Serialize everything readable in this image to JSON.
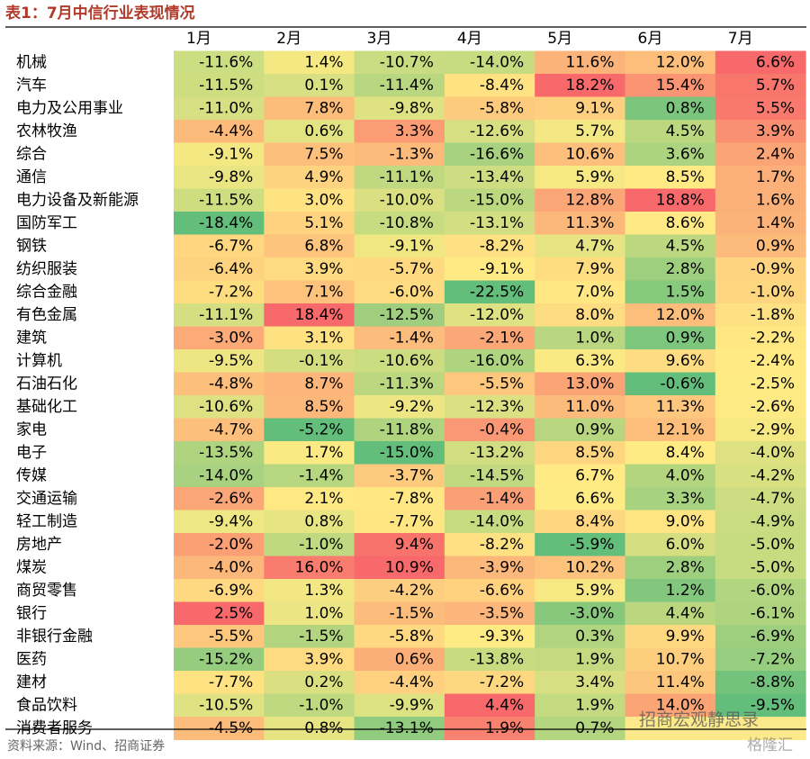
{
  "header": {
    "title": "表1：7月中信行业表现情况"
  },
  "table": {
    "columns": [
      "1月",
      "2月",
      "3月",
      "4月",
      "5月",
      "6月",
      "7月"
    ],
    "rows": [
      {
        "label": "机械",
        "cells": [
          "-11.6%",
          "1.4%",
          "-10.7%",
          "-14.0%",
          "11.6%",
          "12.0%",
          "6.6%"
        ]
      },
      {
        "label": "汽车",
        "cells": [
          "-11.5%",
          "0.1%",
          "-11.4%",
          "-8.4%",
          "18.2%",
          "15.4%",
          "5.7%"
        ]
      },
      {
        "label": "电力及公用事业",
        "cells": [
          "-11.0%",
          "7.8%",
          "-9.8%",
          "-5.8%",
          "9.1%",
          "0.8%",
          "5.5%"
        ]
      },
      {
        "label": "农林牧渔",
        "cells": [
          "-4.4%",
          "0.6%",
          "3.3%",
          "-12.6%",
          "5.7%",
          "4.5%",
          "3.9%"
        ]
      },
      {
        "label": "综合",
        "cells": [
          "-9.1%",
          "7.5%",
          "-1.3%",
          "-16.6%",
          "10.6%",
          "3.6%",
          "2.4%"
        ]
      },
      {
        "label": "通信",
        "cells": [
          "-9.8%",
          "4.9%",
          "-11.1%",
          "-13.4%",
          "5.9%",
          "8.5%",
          "1.7%"
        ]
      },
      {
        "label": "电力设备及新能源",
        "cells": [
          "-11.5%",
          "3.0%",
          "-10.0%",
          "-15.0%",
          "12.8%",
          "18.8%",
          "1.6%"
        ]
      },
      {
        "label": "国防军工",
        "cells": [
          "-18.4%",
          "5.1%",
          "-10.8%",
          "-13.1%",
          "11.3%",
          "8.6%",
          "1.4%"
        ]
      },
      {
        "label": "钢铁",
        "cells": [
          "-6.7%",
          "6.8%",
          "-9.1%",
          "-8.2%",
          "4.7%",
          "4.5%",
          "0.9%"
        ]
      },
      {
        "label": "纺织服装",
        "cells": [
          "-6.4%",
          "3.9%",
          "-5.7%",
          "-9.1%",
          "7.9%",
          "2.8%",
          "-0.9%"
        ]
      },
      {
        "label": "综合金融",
        "cells": [
          "-7.2%",
          "7.1%",
          "-6.0%",
          "-22.5%",
          "7.0%",
          "1.5%",
          "-1.0%"
        ]
      },
      {
        "label": "有色金属",
        "cells": [
          "-11.1%",
          "18.4%",
          "-12.5%",
          "-12.0%",
          "8.0%",
          "12.0%",
          "-1.8%"
        ]
      },
      {
        "label": "建筑",
        "cells": [
          "-3.0%",
          "3.1%",
          "-1.4%",
          "-2.1%",
          "1.0%",
          "0.9%",
          "-2.2%"
        ]
      },
      {
        "label": "计算机",
        "cells": [
          "-9.5%",
          "-0.1%",
          "-10.6%",
          "-16.0%",
          "6.3%",
          "9.6%",
          "-2.4%"
        ]
      },
      {
        "label": "石油石化",
        "cells": [
          "-4.8%",
          "8.7%",
          "-11.3%",
          "-5.5%",
          "13.0%",
          "-0.6%",
          "-2.5%"
        ]
      },
      {
        "label": "基础化工",
        "cells": [
          "-10.6%",
          "8.5%",
          "-9.2%",
          "-12.3%",
          "11.0%",
          "11.3%",
          "-2.6%"
        ]
      },
      {
        "label": "家电",
        "cells": [
          "-4.7%",
          "-5.2%",
          "-11.8%",
          "-0.4%",
          "0.9%",
          "12.1%",
          "-2.9%"
        ]
      },
      {
        "label": "电子",
        "cells": [
          "-13.5%",
          "1.7%",
          "-15.0%",
          "-13.2%",
          "8.5%",
          "8.4%",
          "-4.0%"
        ]
      },
      {
        "label": "传媒",
        "cells": [
          "-14.0%",
          "-1.4%",
          "-3.7%",
          "-14.5%",
          "6.7%",
          "4.0%",
          "-4.2%"
        ]
      },
      {
        "label": "交通运输",
        "cells": [
          "-2.6%",
          "2.1%",
          "-7.8%",
          "-1.4%",
          "6.6%",
          "3.3%",
          "-4.7%"
        ]
      },
      {
        "label": "轻工制造",
        "cells": [
          "-9.4%",
          "0.8%",
          "-7.7%",
          "-14.0%",
          "8.4%",
          "9.0%",
          "-4.9%"
        ]
      },
      {
        "label": "房地产",
        "cells": [
          "-2.0%",
          "-1.0%",
          "9.4%",
          "-8.2%",
          "-5.9%",
          "6.0%",
          "-5.0%"
        ]
      },
      {
        "label": "煤炭",
        "cells": [
          "-4.0%",
          "16.0%",
          "10.9%",
          "-3.9%",
          "10.2%",
          "2.8%",
          "-5.0%"
        ]
      },
      {
        "label": "商贸零售",
        "cells": [
          "-6.9%",
          "1.3%",
          "-4.2%",
          "-6.6%",
          "5.9%",
          "1.2%",
          "-6.0%"
        ]
      },
      {
        "label": "银行",
        "cells": [
          "2.5%",
          "1.0%",
          "-1.5%",
          "-3.5%",
          "-3.0%",
          "4.4%",
          "-6.1%"
        ]
      },
      {
        "label": "非银行金融",
        "cells": [
          "-5.5%",
          "-1.5%",
          "-5.8%",
          "-9.3%",
          "0.3%",
          "9.9%",
          "-6.9%"
        ]
      },
      {
        "label": "医药",
        "cells": [
          "-15.2%",
          "3.9%",
          "0.6%",
          "-13.8%",
          "1.9%",
          "10.7%",
          "-7.2%"
        ]
      },
      {
        "label": "建材",
        "cells": [
          "-7.7%",
          "0.2%",
          "-4.4%",
          "-7.2%",
          "3.4%",
          "11.4%",
          "-8.8%"
        ]
      },
      {
        "label": "食品饮料",
        "cells": [
          "-10.5%",
          "-1.0%",
          "-9.9%",
          "4.4%",
          "1.9%",
          "14.0%",
          "-9.5%"
        ]
      },
      {
        "label": "消费者服务",
        "cells": [
          "-4.5%",
          "0.8%",
          "-13.1%",
          "1.9%",
          "0.7%",
          null,
          null
        ]
      }
    ]
  },
  "footer": {
    "source": "资料来源：Wind、招商证券"
  },
  "watermark": [
    "招商宏观静思录",
    "格隆汇"
  ]
}
